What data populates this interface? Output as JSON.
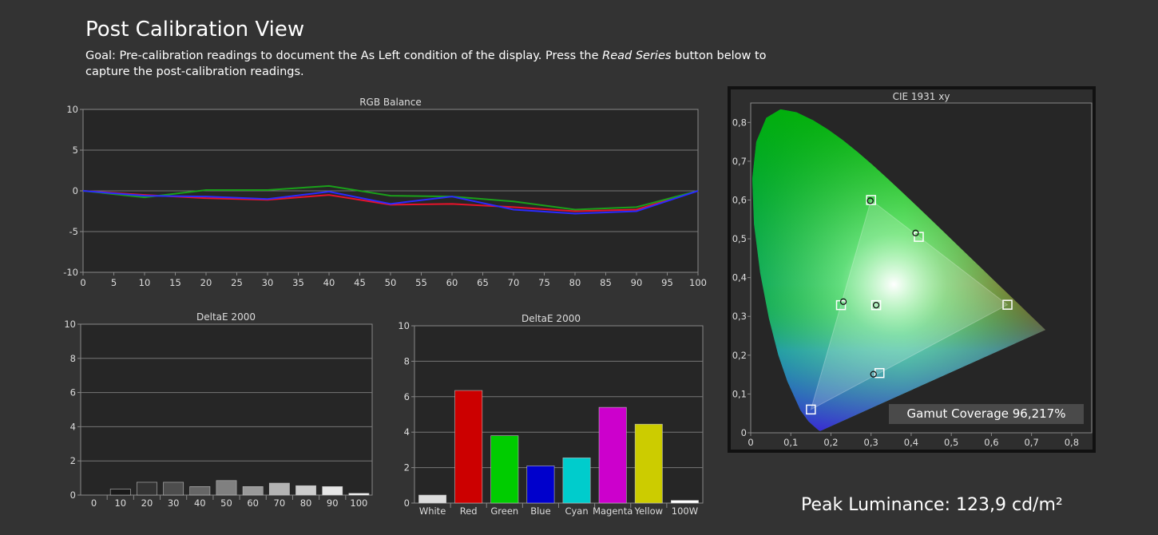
{
  "page": {
    "title": "Post Calibration View",
    "goal_prefix": "Goal: Pre-calibration readings to document the As Left condition of the display. Press the ",
    "goal_emph": "Read Series",
    "goal_suffix": " button below to capture the post-calibration readings.",
    "gamut_coverage": "Gamut Coverage 96,217%",
    "peak_luminance": "Peak Luminance: 123,9 cd/m²"
  },
  "chart_data": [
    {
      "id": "rgb",
      "type": "line",
      "title": "RGB Balance",
      "x": [
        0,
        10,
        20,
        30,
        40,
        50,
        60,
        70,
        80,
        90,
        100
      ],
      "xticks": [
        0,
        5,
        10,
        15,
        20,
        25,
        30,
        35,
        40,
        45,
        50,
        55,
        60,
        65,
        70,
        75,
        80,
        85,
        90,
        95,
        100
      ],
      "ylim": [
        -10,
        10
      ],
      "yticks": [
        -10,
        -5,
        0,
        5,
        10
      ],
      "grid": true,
      "series": [
        {
          "color": "#e8132a",
          "values": [
            0,
            -0.5,
            -0.9,
            -1.1,
            -0.5,
            -1.7,
            -1.6,
            -2.0,
            -2.5,
            -2.3,
            0
          ]
        },
        {
          "color": "#1aa01a",
          "values": [
            0,
            -0.8,
            0.1,
            0.1,
            0.6,
            -0.6,
            -0.7,
            -1.3,
            -2.3,
            -2.0,
            0
          ]
        },
        {
          "color": "#2a2aff",
          "values": [
            0,
            -0.6,
            -0.7,
            -1.0,
            -0.1,
            -1.6,
            -0.7,
            -2.3,
            -2.8,
            -2.5,
            0
          ]
        }
      ]
    },
    {
      "id": "gray",
      "type": "bar",
      "title": "DeltaE 2000",
      "categories": [
        "0",
        "10",
        "20",
        "30",
        "40",
        "50",
        "60",
        "70",
        "80",
        "90",
        "100"
      ],
      "values": [
        0,
        0.35,
        0.75,
        0.75,
        0.5,
        0.85,
        0.5,
        0.7,
        0.55,
        0.5,
        0.1
      ],
      "colors": [
        "#000000",
        "#1a1a1a",
        "#333333",
        "#4d4d4d",
        "#666666",
        "#808080",
        "#999999",
        "#b3b3b3",
        "#cccccc",
        "#e6e6e6",
        "#ffffff"
      ],
      "ylim": [
        0,
        10
      ],
      "yticks": [
        0,
        2,
        4,
        6,
        8,
        10
      ],
      "grid": true
    },
    {
      "id": "color",
      "type": "bar",
      "title": "DeltaE 2000",
      "categories": [
        "White",
        "Red",
        "Green",
        "Blue",
        "Cyan",
        "Magenta",
        "Yellow",
        "100W"
      ],
      "values": [
        0.45,
        6.35,
        3.8,
        2.1,
        2.55,
        5.4,
        4.45,
        0.15
      ],
      "colors": [
        "#dddddd",
        "#cc0000",
        "#00cc00",
        "#0000cc",
        "#00cccc",
        "#cc00cc",
        "#cccc00",
        "#ffffff"
      ],
      "ylim": [
        0,
        10
      ],
      "yticks": [
        0,
        2,
        4,
        6,
        8,
        10
      ],
      "grid": true
    },
    {
      "id": "cie",
      "type": "scatter",
      "title": "CIE 1931 xy",
      "xlim": [
        0,
        0.85
      ],
      "ylim": [
        0,
        0.85
      ],
      "xticks": [
        "0",
        "0,1",
        "0,2",
        "0,3",
        "0,4",
        "0,5",
        "0,6",
        "0,7",
        "0,8"
      ],
      "yticks": [
        "0",
        "0,1",
        "0,2",
        "0,3",
        "0,4",
        "0,5",
        "0,6",
        "0,7",
        "0,8"
      ],
      "targets": [
        [
          0.64,
          0.33
        ],
        [
          0.3,
          0.6
        ],
        [
          0.15,
          0.06
        ],
        [
          0.225,
          0.329
        ],
        [
          0.321,
          0.154
        ],
        [
          0.419,
          0.505
        ],
        [
          0.3127,
          0.329
        ]
      ],
      "measured": [
        [
          0.298,
          0.598
        ],
        [
          0.231,
          0.338
        ],
        [
          0.306,
          0.151
        ],
        [
          0.411,
          0.515
        ],
        [
          0.3127,
          0.329
        ]
      ],
      "triangle": [
        [
          0.64,
          0.33
        ],
        [
          0.3,
          0.6
        ],
        [
          0.15,
          0.06
        ]
      ],
      "locus": [
        [
          0.1741,
          0.005
        ],
        [
          0.1738,
          0.0049
        ],
        [
          0.1733,
          0.0048
        ],
        [
          0.1726,
          0.0048
        ],
        [
          0.1714,
          0.0051
        ],
        [
          0.1689,
          0.0069
        ],
        [
          0.1644,
          0.0109
        ],
        [
          0.1566,
          0.0177
        ],
        [
          0.144,
          0.0297
        ],
        [
          0.1241,
          0.0578
        ],
        [
          0.0913,
          0.1327
        ],
        [
          0.0687,
          0.2007
        ],
        [
          0.0454,
          0.295
        ],
        [
          0.0235,
          0.4127
        ],
        [
          0.0082,
          0.5384
        ],
        [
          0.0039,
          0.6548
        ],
        [
          0.0139,
          0.7502
        ],
        [
          0.0389,
          0.812
        ],
        [
          0.0743,
          0.8338
        ],
        [
          0.1142,
          0.8262
        ],
        [
          0.1547,
          0.8059
        ],
        [
          0.1929,
          0.7816
        ],
        [
          0.2296,
          0.7543
        ],
        [
          0.2658,
          0.7243
        ],
        [
          0.3016,
          0.6923
        ],
        [
          0.3373,
          0.6589
        ],
        [
          0.3731,
          0.6245
        ],
        [
          0.4087,
          0.5896
        ],
        [
          0.4441,
          0.5547
        ],
        [
          0.4788,
          0.5202
        ],
        [
          0.5125,
          0.4866
        ],
        [
          0.5448,
          0.4544
        ],
        [
          0.5752,
          0.4242
        ],
        [
          0.6029,
          0.3965
        ],
        [
          0.627,
          0.3725
        ],
        [
          0.6482,
          0.3514
        ],
        [
          0.6658,
          0.334
        ],
        [
          0.6915,
          0.3083
        ],
        [
          0.714,
          0.2859
        ],
        [
          0.7347,
          0.2653
        ]
      ]
    }
  ]
}
